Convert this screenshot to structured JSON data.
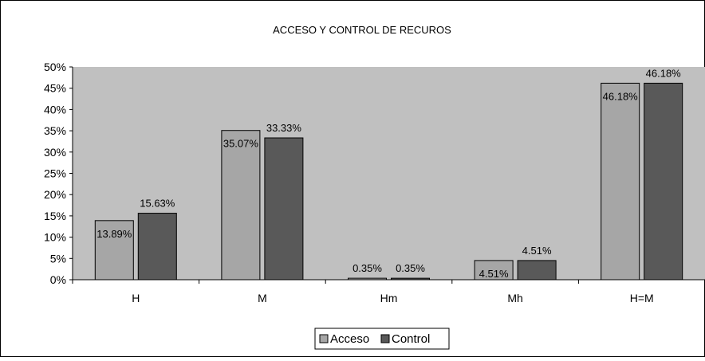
{
  "chart_data": {
    "type": "bar",
    "title": "ACCESO Y CONTROL DE RECUROS",
    "xlabel": "",
    "ylabel": "",
    "categories": [
      "H",
      "M",
      "Hm",
      "Mh",
      "H=M"
    ],
    "series": [
      {
        "name": "Acceso",
        "values": [
          13.89,
          35.07,
          0.35,
          4.51,
          46.18
        ],
        "labels": [
          "13.89%",
          "35.07%",
          "0.35%",
          "4.51%",
          "46.18%"
        ]
      },
      {
        "name": "Control",
        "values": [
          15.63,
          33.33,
          0.35,
          4.51,
          46.18
        ],
        "labels": [
          "15.63%",
          "33.33%",
          "0.35%",
          "4.51%",
          "46.18%"
        ]
      }
    ],
    "ylim": [
      0,
      50
    ],
    "yticks": [
      0,
      5,
      10,
      15,
      20,
      25,
      30,
      35,
      40,
      45,
      50
    ],
    "ytick_labels": [
      "0%",
      "5%",
      "10%",
      "15%",
      "20%",
      "25%",
      "30%",
      "35%",
      "40%",
      "45%",
      "50%"
    ],
    "grid": false,
    "legend_position": "bottom",
    "colors": {
      "plot_area": "#c0c0c0",
      "acceso": "#a6a6a6",
      "control": "#595959",
      "bar_border": "#000000"
    }
  }
}
